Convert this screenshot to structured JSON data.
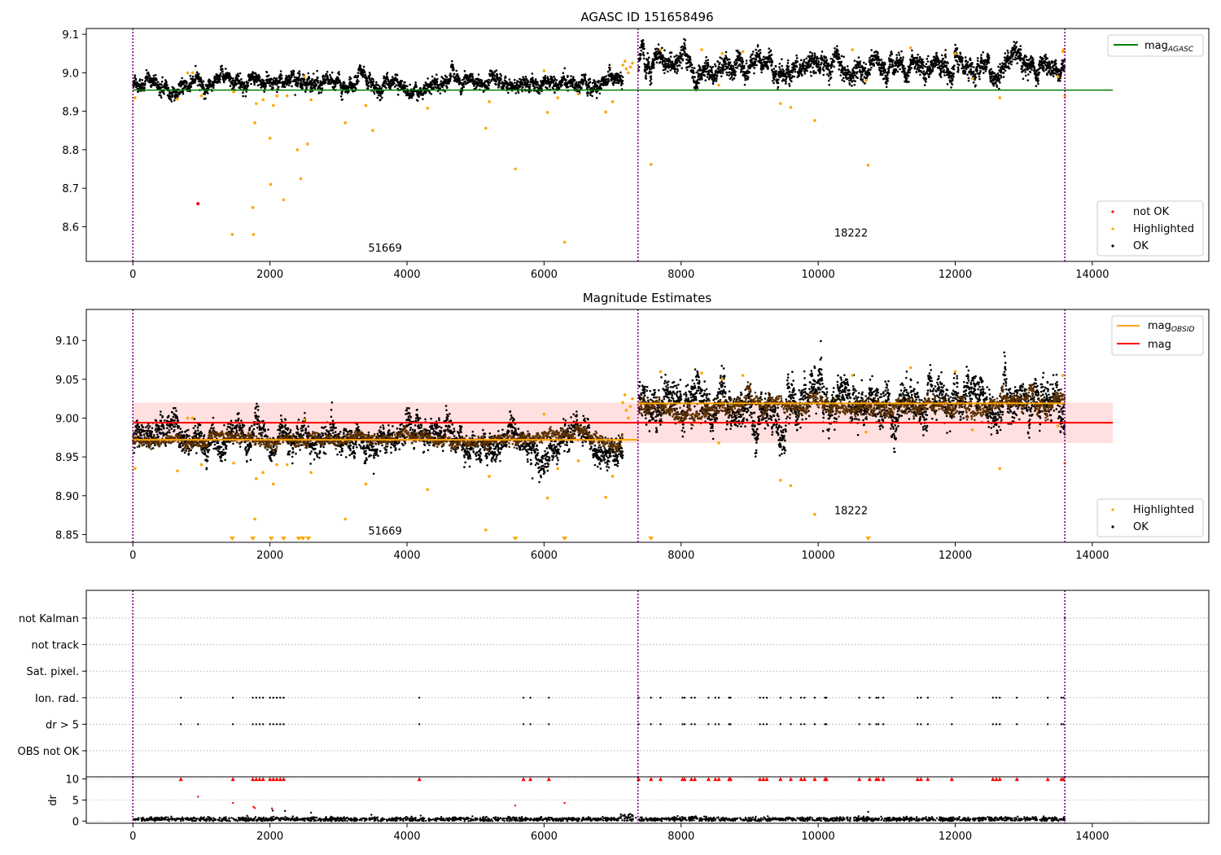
{
  "chart_data": [
    {
      "type": "scatter",
      "title": "AGASC ID 151658496",
      "xlim": [
        -680,
        15700
      ],
      "ylim": [
        8.51,
        9.115
      ],
      "xticks": [
        "0",
        "2000",
        "4000",
        "6000",
        "8000",
        "10000",
        "12000",
        "14000"
      ],
      "yticks": [
        "8.6",
        "8.7",
        "8.8",
        "8.9",
        "9.0",
        "9.1"
      ],
      "ytick_values": [
        8.6,
        8.7,
        8.8,
        8.9,
        9.0,
        9.1
      ],
      "obs_boundaries": [
        0,
        7370,
        13600
      ],
      "obs_labels": [
        {
          "x": 3680,
          "y": 8.535,
          "text": "51669"
        },
        {
          "x": 10480,
          "y": 8.575,
          "text": "18222"
        }
      ],
      "mag_agasc": {
        "x": [
          0,
          14300
        ],
        "y": 8.955
      },
      "ok_segments": [
        {
          "x0": 0,
          "x1": 7150,
          "mean": 8.972,
          "spread": 0.013
        },
        {
          "x0": 7380,
          "x1": 13600,
          "mean": 9.017,
          "spread": 0.018
        }
      ],
      "highlighted": [
        [
          30,
          8.935
        ],
        [
          650,
          8.932
        ],
        [
          800,
          9.0
        ],
        [
          870,
          9.0
        ],
        [
          1000,
          8.94
        ],
        [
          1450,
          8.58
        ],
        [
          1470,
          8.95
        ],
        [
          1750,
          8.65
        ],
        [
          1760,
          8.58
        ],
        [
          1780,
          8.87
        ],
        [
          1800,
          8.92
        ],
        [
          1900,
          8.93
        ],
        [
          2000,
          8.83
        ],
        [
          2010,
          8.71
        ],
        [
          2050,
          8.915
        ],
        [
          2100,
          8.94
        ],
        [
          2200,
          8.67
        ],
        [
          2250,
          8.94
        ],
        [
          2400,
          8.8
        ],
        [
          2450,
          8.725
        ],
        [
          2500,
          8.99
        ],
        [
          2550,
          8.815
        ],
        [
          2600,
          8.93
        ],
        [
          3100,
          8.87
        ],
        [
          3400,
          8.915
        ],
        [
          3500,
          8.85
        ],
        [
          4300,
          8.908
        ],
        [
          5150,
          8.856
        ],
        [
          5200,
          8.925
        ],
        [
          5580,
          8.75
        ],
        [
          6000,
          9.005
        ],
        [
          6050,
          8.897
        ],
        [
          6200,
          8.935
        ],
        [
          6300,
          8.56
        ],
        [
          6500,
          8.945
        ],
        [
          6900,
          8.898
        ],
        [
          7000,
          8.925
        ],
        [
          7150,
          9.02
        ],
        [
          7180,
          9.03
        ],
        [
          7200,
          9.01
        ],
        [
          7230,
          9.0
        ],
        [
          7260,
          9.015
        ],
        [
          7290,
          9.025
        ],
        [
          7560,
          8.762
        ],
        [
          7700,
          9.06
        ],
        [
          8300,
          9.06
        ],
        [
          8550,
          8.968
        ],
        [
          8600,
          9.05
        ],
        [
          8900,
          9.055
        ],
        [
          9450,
          8.92
        ],
        [
          9600,
          8.91
        ],
        [
          9950,
          8.876
        ],
        [
          10500,
          9.06
        ],
        [
          10700,
          8.98
        ],
        [
          10730,
          8.76
        ],
        [
          11350,
          9.065
        ],
        [
          12000,
          9.05
        ],
        [
          12250,
          8.985
        ],
        [
          12650,
          8.935
        ],
        [
          13500,
          8.99
        ],
        [
          13570,
          9.055
        ],
        [
          13580,
          9.06
        ],
        [
          13600,
          8.94
        ]
      ],
      "not_ok": [
        [
          950,
          8.66
        ]
      ],
      "legend": [
        {
          "label": "not OK",
          "color": "#ff0000"
        },
        {
          "label": "Highlighted",
          "color": "#ffa500"
        },
        {
          "label": "OK",
          "color": "#000000"
        }
      ],
      "line_legend": {
        "label": "mag",
        "subscript": "AGASC",
        "color": "#008000"
      }
    },
    {
      "type": "scatter",
      "title": "Magnitude Estimates",
      "xlim": [
        -680,
        15700
      ],
      "ylim": [
        8.84,
        9.14
      ],
      "xticks": [
        "0",
        "2000",
        "4000",
        "6000",
        "8000",
        "10000",
        "12000",
        "14000"
      ],
      "yticks": [
        "8.85",
        "8.90",
        "8.95",
        "9.00",
        "9.05",
        "9.10"
      ],
      "ytick_values": [
        8.85,
        8.9,
        8.95,
        9.0,
        9.05,
        9.1
      ],
      "obs_boundaries": [
        0,
        7370,
        13600
      ],
      "obs_labels": [
        {
          "x": 3680,
          "y": 8.85,
          "text": "51669"
        },
        {
          "x": 10480,
          "y": 8.876,
          "text": "18222"
        }
      ],
      "mag": {
        "x": [
          0,
          14300
        ],
        "y": 8.994,
        "band": [
          8.968,
          9.02
        ]
      },
      "mag_obsid": [
        {
          "x0": 0,
          "x1": 7370,
          "y": 8.972
        },
        {
          "x0": 7370,
          "x1": 13600,
          "y": 9.019
        }
      ],
      "highlighted": [
        [
          30,
          8.935
        ],
        [
          650,
          8.932
        ],
        [
          800,
          9.0
        ],
        [
          870,
          9.0
        ],
        [
          1000,
          8.94
        ],
        [
          1470,
          8.942
        ],
        [
          1780,
          8.87
        ],
        [
          1800,
          8.922
        ],
        [
          1900,
          8.93
        ],
        [
          2050,
          8.915
        ],
        [
          2100,
          8.94
        ],
        [
          2250,
          8.94
        ],
        [
          2500,
          8.998
        ],
        [
          2600,
          8.93
        ],
        [
          3100,
          8.87
        ],
        [
          3400,
          8.915
        ],
        [
          4300,
          8.908
        ],
        [
          5150,
          8.856
        ],
        [
          5200,
          8.925
        ],
        [
          6000,
          9.005
        ],
        [
          6050,
          8.897
        ],
        [
          6200,
          8.935
        ],
        [
          6500,
          8.945
        ],
        [
          6900,
          8.898
        ],
        [
          7000,
          8.925
        ],
        [
          7150,
          9.02
        ],
        [
          7180,
          9.03
        ],
        [
          7200,
          9.01
        ],
        [
          7230,
          9.0
        ],
        [
          7260,
          9.015
        ],
        [
          7290,
          9.025
        ],
        [
          7700,
          9.06
        ],
        [
          8300,
          9.058
        ],
        [
          8550,
          8.968
        ],
        [
          8600,
          9.05
        ],
        [
          8900,
          9.055
        ],
        [
          9450,
          8.92
        ],
        [
          9600,
          8.913
        ],
        [
          9950,
          8.876
        ],
        [
          10500,
          9.055
        ],
        [
          10700,
          8.982
        ],
        [
          11350,
          9.065
        ],
        [
          12000,
          9.06
        ],
        [
          12250,
          8.985
        ],
        [
          12650,
          8.935
        ],
        [
          13500,
          8.99
        ],
        [
          13570,
          9.055
        ],
        [
          13600,
          8.942
        ]
      ],
      "below_markers": [
        1450,
        1750,
        2020,
        2200,
        2420,
        2480,
        2560,
        5580,
        6300,
        7560,
        10730
      ],
      "legend": [
        {
          "label": "Highlighted",
          "color": "#ffa500"
        },
        {
          "label": "OK",
          "color": "#000000"
        }
      ],
      "line_legend": [
        {
          "label": "mag",
          "subscript": "OBSID",
          "color": "#ffa500"
        },
        {
          "label": "mag",
          "subscript": "",
          "color": "#ff0000"
        }
      ]
    },
    {
      "type": "scatter",
      "title": "",
      "xlim": [
        -680,
        15700
      ],
      "categories": [
        "not Kalman",
        "not track",
        "Sat. pixel.",
        "Ion. rad.",
        "dr > 5",
        "OBS not OK"
      ],
      "obs_boundaries": [
        0,
        7370,
        13600
      ],
      "flag_events": {
        "Ion. rad.": [
          700,
          1460,
          1750,
          1800,
          1850,
          1900,
          2000,
          2050,
          2100,
          2150,
          2200,
          4180,
          5700,
          5800,
          6070,
          7380,
          7560,
          7700,
          8020,
          8050,
          8150,
          8200,
          8400,
          8500,
          8550,
          8700,
          8720,
          9150,
          9200,
          9250,
          9450,
          9600,
          9750,
          9800,
          9950,
          10100,
          10120,
          10600,
          10750,
          10850,
          10880,
          10950,
          11450,
          11500,
          11600,
          11950,
          12550,
          12600,
          12650,
          12900,
          13350,
          13550,
          13580
        ],
        "dr > 5": [
          700,
          950,
          1460,
          1750,
          1800,
          1850,
          1900,
          2000,
          2050,
          2100,
          2150,
          2200,
          4180,
          5700,
          5800,
          6070,
          7380,
          7560,
          7700,
          8020,
          8050,
          8150,
          8200,
          8400,
          8500,
          8550,
          8700,
          8720,
          9150,
          9200,
          9250,
          9450,
          9600,
          9750,
          9800,
          9950,
          10100,
          10120,
          10600,
          10750,
          10850,
          10880,
          10950,
          11450,
          11500,
          11600,
          11950,
          12550,
          12600,
          12650,
          12900,
          13350,
          13550,
          13580
        ],
        "not Kalman": [
          13600
        ]
      }
    },
    {
      "type": "scatter",
      "title": "",
      "ylabel": "dr",
      "xlim": [
        -680,
        15700
      ],
      "ylim": [
        -0.5,
        10.5
      ],
      "xticks": [
        "0",
        "2000",
        "4000",
        "6000",
        "8000",
        "10000",
        "12000",
        "14000"
      ],
      "yticks": [
        "0",
        "5",
        "10"
      ],
      "ytick_values": [
        0,
        5,
        10
      ],
      "obs_boundaries": [
        0,
        7370,
        13600
      ],
      "clipped_at_10": [
        700,
        1460,
        1750,
        1800,
        1850,
        1900,
        2000,
        2050,
        2100,
        2150,
        2200,
        4180,
        5700,
        5800,
        6070,
        7380,
        7560,
        7700,
        8020,
        8050,
        8150,
        8200,
        8400,
        8500,
        8550,
        8700,
        8720,
        9150,
        9200,
        9250,
        9450,
        9600,
        9750,
        9800,
        9950,
        10100,
        10120,
        10600,
        10750,
        10850,
        10880,
        10950,
        11450,
        11500,
        11600,
        11950,
        12550,
        12600,
        12650,
        12900,
        13350,
        13550,
        13580
      ],
      "mid_points": [
        [
          950,
          5.8
        ],
        [
          1460,
          4.3
        ],
        [
          1760,
          3.4
        ],
        [
          1780,
          3.1
        ],
        [
          2030,
          3.0
        ],
        [
          2040,
          2.5
        ],
        [
          2220,
          2.4
        ],
        [
          5580,
          3.7
        ],
        [
          6300,
          4.3
        ],
        [
          2600,
          2.0
        ],
        [
          10730,
          2.2
        ],
        [
          3480,
          1.5
        ],
        [
          4200,
          1.3
        ]
      ],
      "baseline": {
        "mean": 0.45,
        "spread": 0.25
      },
      "bump": {
        "x0": 7100,
        "x1": 7300,
        "max": 1.8
      }
    }
  ]
}
